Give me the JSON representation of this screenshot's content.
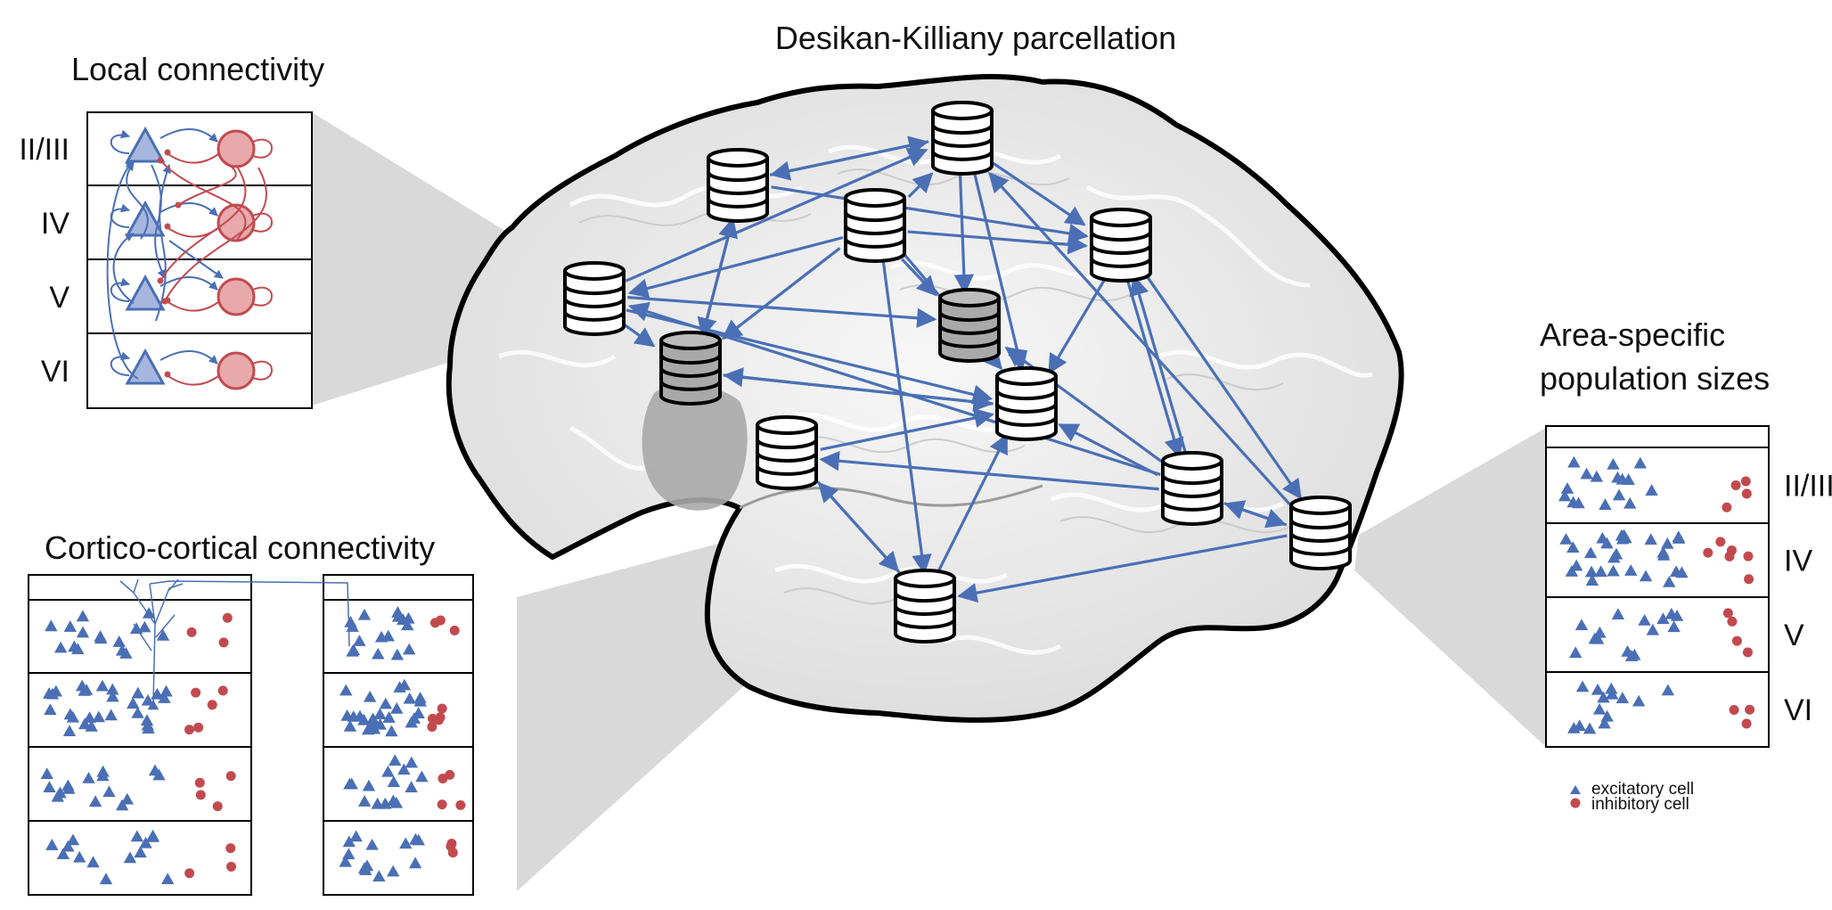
{
  "titles": {
    "parcellation": "Desikan-Killiany parcellation",
    "local": "Local connectivity",
    "cortico": "Cortico-cortical connectivity",
    "area_specific_1": "Area-specific",
    "area_specific_2": "population sizes"
  },
  "layers": [
    "II/III",
    "IV",
    "V",
    "VI"
  ],
  "legend": {
    "excitatory": "excitatory cell",
    "inhibitory": "inhibitory cell"
  },
  "colors": {
    "excitatory": "#4a6fb5",
    "inhibitory": "#c24a4f",
    "arrow": "#4a6fb5",
    "brain_fill": "#ebebeb",
    "projection": "#cfcfcf"
  }
}
